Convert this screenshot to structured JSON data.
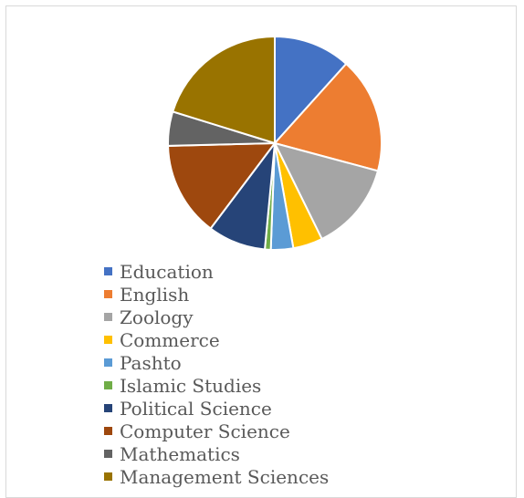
{
  "chart_data": {
    "type": "pie",
    "title": "",
    "categories": [
      "Education",
      "English",
      "Zoology",
      "Commerce",
      "Pashto",
      "Islamic Studies",
      "Political Science",
      "Computer Science",
      "Mathematics",
      "Management Sciences"
    ],
    "values": [
      11.7,
      17.6,
      13.6,
      4.5,
      3.4,
      0.9,
      8.8,
      14.4,
      5.2,
      20.3
    ],
    "colors": [
      "#4472c4",
      "#ed7d31",
      "#a5a5a5",
      "#ffc000",
      "#5b9bd5",
      "#70ad47",
      "#264478",
      "#9e480e",
      "#636363",
      "#997300"
    ],
    "legend": "bottom"
  }
}
